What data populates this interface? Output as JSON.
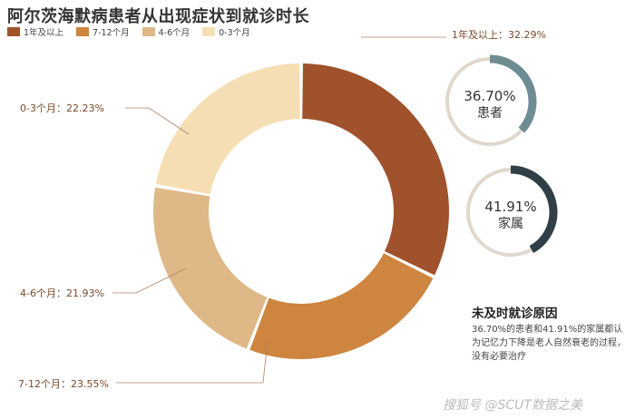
{
  "title": "阿尔茨海默病患者从出现症状到就诊时长",
  "chart_data": {
    "type": "pie",
    "donut": true,
    "categories": [
      "1年及以上",
      "7-12个月",
      "4-6个月",
      "0-3个月"
    ],
    "values": [
      32.29,
      23.55,
      21.93,
      22.23
    ],
    "slice_labels": [
      "1年及以上：32.29%",
      "7-12个月：23.55%",
      "4-6个月：21.93%",
      "0-3个月：22.23%"
    ],
    "colors": [
      "#a0522d",
      "#cd853f",
      "#deb887",
      "#f5deb3"
    ],
    "legend_position": "top-left"
  },
  "rings": [
    {
      "value": 36.7,
      "pct_text": "36.70%",
      "label": "患者",
      "color": "#6f8c93",
      "track": "#e0d8cc"
    },
    {
      "value": 41.91,
      "pct_text": "41.91%",
      "label": "家属",
      "color": "#2f3f45",
      "track": "#e0d8cc"
    }
  ],
  "cause": {
    "title": "未及时就诊原因",
    "text": "36.70%的患者和41.91%的家属都认为记忆力下降是老人自然衰老的过程，没有必要治疗"
  },
  "watermark": "搜狐号 @SCUT数据之美"
}
